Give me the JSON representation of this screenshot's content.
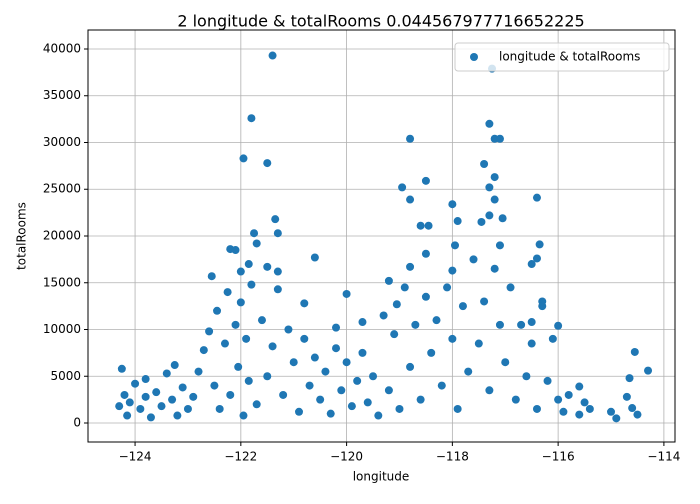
{
  "chart_data": {
    "type": "scatter",
    "title": "2 longitude & totalRooms 0.044567977716652225",
    "x_label": "longitude",
    "y_label": "totalRooms",
    "xlim": [
      -124.89,
      -113.79
    ],
    "ylim": [
      -2032,
      42032
    ],
    "xticks": [
      {
        "value": -124,
        "label": "−124"
      },
      {
        "value": -122,
        "label": "−122"
      },
      {
        "value": -120,
        "label": "−120"
      },
      {
        "value": -118,
        "label": "−118"
      },
      {
        "value": -116,
        "label": "−116"
      },
      {
        "value": -114,
        "label": "−114"
      }
    ],
    "yticks": [
      0,
      5000,
      10000,
      15000,
      20000,
      25000,
      30000,
      35000,
      40000
    ],
    "grid": true,
    "legend": "upper right",
    "series": [
      {
        "name": "longitude & totalRooms",
        "color": "#1f77b4",
        "x": [
          -121.4,
          -117.25,
          -121.8,
          -117.3,
          -118.8,
          -117.2,
          -117.1,
          -121.95,
          -121.5,
          -117.4,
          -118.95,
          -117.3,
          -118.5,
          -117.2,
          -118.8,
          -118.0,
          -116.4,
          -117.2,
          -121.35,
          -117.45,
          -117.3,
          -117.05,
          -121.75,
          -121.3,
          -118.6,
          -118.45,
          -117.9,
          -122.2,
          -122.1,
          -121.7,
          -117.95,
          -117.1,
          -116.35,
          -120.6,
          -116.4,
          -116.5,
          -121.85,
          -121.5,
          -121.3,
          -122.0,
          -122.55,
          -119.2,
          -118.8,
          -118.5,
          -118.0,
          -120.0,
          -120.8,
          -119.05,
          -116.3,
          -116.0,
          -116.5,
          -115.6,
          -114.55,
          -114.3,
          -114.65,
          -124.25,
          -123.25,
          -123.8,
          -120.2,
          -119.7,
          -124.3,
          -124.2,
          -124.15,
          -124.1,
          -124.0,
          -123.9,
          -123.8,
          -123.7,
          -123.6,
          -123.5,
          -123.4,
          -123.3,
          -123.2,
          -123.1,
          -123.0,
          -122.9,
          -122.8,
          -122.7,
          -122.6,
          -122.5,
          -122.45,
          -122.4,
          -122.3,
          -122.25,
          -122.2,
          -122.1,
          -122.05,
          -122.0,
          -121.95,
          -121.9,
          -121.85,
          -121.8,
          -121.7,
          -121.6,
          -121.5,
          -121.4,
          -121.3,
          -121.2,
          -121.1,
          -121.0,
          -120.9,
          -120.8,
          -120.7,
          -120.6,
          -120.5,
          -120.4,
          -120.3,
          -120.2,
          -120.1,
          -120.0,
          -119.9,
          -119.8,
          -119.7,
          -119.6,
          -119.5,
          -119.4,
          -119.3,
          -119.2,
          -119.1,
          -119.0,
          -118.9,
          -118.8,
          -118.7,
          -118.6,
          -118.5,
          -118.4,
          -118.3,
          -118.2,
          -118.1,
          -118.0,
          -117.9,
          -117.8,
          -117.7,
          -117.6,
          -117.5,
          -117.4,
          -117.3,
          -117.2,
          -117.1,
          -117.0,
          -116.9,
          -116.8,
          -116.7,
          -116.6,
          -116.5,
          -116.4,
          -116.3,
          -116.2,
          -116.1,
          -116.0,
          -115.9,
          -115.8,
          -115.6,
          -115.5,
          -115.4,
          -115.0,
          -114.9,
          -114.7,
          -114.6,
          -114.5
        ],
        "values": [
          39300,
          37900,
          32600,
          32000,
          30400,
          30400,
          30400,
          28300,
          27800,
          27700,
          25200,
          25200,
          25900,
          26300,
          23900,
          23400,
          24100,
          23900,
          21800,
          21500,
          22200,
          21900,
          20300,
          20300,
          21100,
          21100,
          21600,
          18600,
          18500,
          19200,
          19000,
          19000,
          19100,
          17700,
          17600,
          17000,
          17000,
          16700,
          16200,
          16200,
          15700,
          15200,
          16700,
          18100,
          16300,
          13800,
          12800,
          12700,
          13000,
          10400,
          10800,
          3900,
          7600,
          5600,
          4800,
          5800,
          6200,
          4700,
          10200,
          10800,
          1800,
          3000,
          800,
          2200,
          4200,
          1500,
          2800,
          600,
          3300,
          1800,
          5300,
          2500,
          800,
          3800,
          1500,
          2800,
          5500,
          7800,
          9800,
          4000,
          12000,
          1500,
          8500,
          14000,
          3000,
          10500,
          6000,
          12900,
          800,
          9000,
          4500,
          14800,
          2000,
          11000,
          5000,
          8200,
          14300,
          3000,
          10000,
          6500,
          1200,
          9000,
          4000,
          7000,
          2500,
          5500,
          1000,
          8000,
          3500,
          6500,
          1800,
          4500,
          7500,
          2200,
          5000,
          800,
          11500,
          3500,
          9500,
          1500,
          14500,
          6000,
          10500,
          2500,
          13500,
          7500,
          11000,
          4000,
          14500,
          9000,
          1500,
          12500,
          5500,
          17500,
          8500,
          13000,
          3500,
          16500,
          10500,
          6500,
          14500,
          2500,
          10500,
          5000,
          8500,
          1500,
          12500,
          4500,
          9000,
          2500,
          1200,
          3000,
          900,
          2200,
          1500,
          1200,
          500,
          2800,
          1600,
          900
        ]
      }
    ]
  }
}
